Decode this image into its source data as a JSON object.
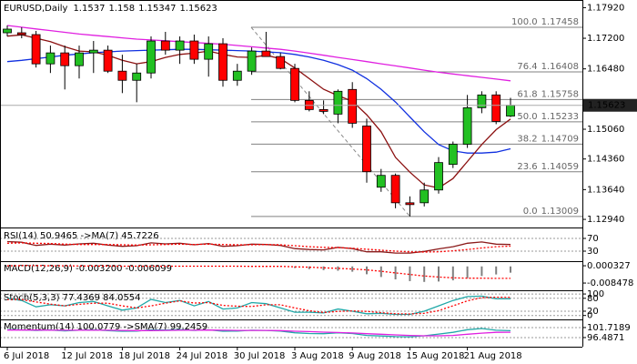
{
  "chart_data": [
    {
      "type": "candlestick",
      "title": "EURUSD,Daily",
      "categories": [
        "6 Jul 2018",
        null,
        null,
        null,
        "12 Jul 2018",
        null,
        null,
        null,
        "18 Jul 2018",
        null,
        null,
        null,
        "24 Jul 2018",
        null,
        null,
        null,
        "30 Jul 2018",
        null,
        null,
        null,
        "3 Aug 2018",
        null,
        null,
        null,
        "9 Aug 2018",
        null,
        null,
        null,
        "15 Aug 2018",
        null,
        null,
        null,
        "21 Aug 2018",
        null,
        null,
        null
      ],
      "open": [
        1.17329,
        1.17329,
        1.17286,
        1.16598,
        1.16856,
        1.16555,
        1.16856,
        1.1692,
        1.16426,
        1.16211,
        1.16383,
        1.17136,
        1.1692,
        1.17136,
        1.16706,
        1.17071,
        1.16211,
        1.16426,
        1.16899,
        1.1677,
        1.16491,
        1.15738,
        1.15523,
        1.15416,
        1.15996,
        1.15136,
        1.13696,
        1.13975,
        1.1333,
        1.1333,
        1.13631,
        1.14233,
        1.14706,
        1.15566,
        1.15867,
        1.1537
      ],
      "high": [
        1.17501,
        1.17458,
        1.17372,
        1.17028,
        1.17028,
        1.17028,
        1.17136,
        1.17028,
        1.16813,
        1.16598,
        1.17243,
        1.17351,
        1.17243,
        1.17286,
        1.17243,
        1.172,
        1.16598,
        1.16985,
        1.17351,
        1.16856,
        1.16598,
        1.15953,
        1.15738,
        1.15996,
        1.16168,
        1.15308,
        1.14126,
        1.14018,
        1.13481,
        1.13803,
        1.14405,
        1.14771,
        1.15867,
        1.15953,
        1.15953,
        1.158
      ],
      "low": [
        1.17243,
        1.172,
        1.16512,
        1.16383,
        1.15996,
        1.16254,
        1.16383,
        1.16383,
        1.1591,
        1.15695,
        1.16254,
        1.16813,
        1.16598,
        1.16598,
        1.16297,
        1.16061,
        1.16082,
        1.1634,
        1.1677,
        1.16469,
        1.15695,
        1.1548,
        1.15416,
        1.15201,
        1.15093,
        1.13803,
        1.13588,
        1.13201,
        1.13009,
        1.13244,
        1.13545,
        1.14147,
        1.1462,
        1.15437,
        1.15179,
        1.15347
      ],
      "close": [
        1.17415,
        1.17286,
        1.16598,
        1.16856,
        1.16555,
        1.16856,
        1.1692,
        1.16426,
        1.16211,
        1.16383,
        1.17136,
        1.1692,
        1.17136,
        1.16706,
        1.17071,
        1.16211,
        1.16426,
        1.16899,
        1.1677,
        1.16491,
        1.15738,
        1.15523,
        1.1548,
        1.15953,
        1.15201,
        1.14061,
        1.13975,
        1.1333,
        1.13287,
        1.13631,
        1.14276,
        1.14706,
        1.15566,
        1.15867,
        1.15244,
        1.15623
      ],
      "up_color": "#22c022",
      "down_color": "#ff0000",
      "series": [
        {
          "color": "#e020e0",
          "values": [
            1.175,
            1.1746,
            1.1742,
            1.1738,
            1.1734,
            1.173,
            1.1727,
            1.1724,
            1.1721,
            1.1718,
            1.1716,
            1.1714,
            1.1712,
            1.171,
            1.1708,
            1.1706,
            1.1703,
            1.17,
            1.1697,
            1.1694,
            1.169,
            1.1685,
            1.168,
            1.1675,
            1.167,
            1.1665,
            1.166,
            1.1655,
            1.165,
            1.1645,
            1.164,
            1.1636,
            1.1632,
            1.1628,
            1.1624,
            1.162
          ]
        },
        {
          "color": "#1030e0",
          "values": [
            1.1665,
            1.1668,
            1.1672,
            1.1676,
            1.168,
            1.1683,
            1.1686,
            1.1688,
            1.169,
            1.1691,
            1.1692,
            1.1693,
            1.1694,
            1.1694,
            1.1693,
            1.1692,
            1.1691,
            1.169,
            1.1688,
            1.1686,
            1.1682,
            1.1676,
            1.1668,
            1.1658,
            1.1645,
            1.1625,
            1.16,
            1.157,
            1.1535,
            1.15,
            1.147,
            1.1455,
            1.145,
            1.145,
            1.1452,
            1.146
          ]
        },
        {
          "color": "#8b1010",
          "values": [
            1.1725,
            1.1728,
            1.172,
            1.1712,
            1.17,
            1.169,
            1.1688,
            1.168,
            1.1668,
            1.166,
            1.1665,
            1.1675,
            1.1682,
            1.1685,
            1.169,
            1.1682,
            1.1676,
            1.1675,
            1.168,
            1.1672,
            1.165,
            1.1625,
            1.16,
            1.1585,
            1.1572,
            1.154,
            1.15,
            1.144,
            1.1405,
            1.1375,
            1.1368,
            1.139,
            1.143,
            1.147,
            1.1505,
            1.153
          ]
        }
      ],
      "fibonacci": [
        {
          "level": "100.0",
          "value": 1.17458
        },
        {
          "level": "76.4",
          "value": 1.16408
        },
        {
          "level": "61.8",
          "value": 1.15758
        },
        {
          "level": "50.0",
          "value": 1.15233
        },
        {
          "level": "38.2",
          "value": 1.14709
        },
        {
          "level": "23.6",
          "value": 1.14059
        },
        {
          "level": "0.0",
          "value": 1.13009
        }
      ],
      "ylim": [
        1.1277,
        1.181
      ],
      "yticks": [
        {
          "value": 1.1792,
          "label": "1.17920"
        },
        {
          "value": 1.172,
          "label": "1.17200"
        },
        {
          "value": 1.1648,
          "label": "1.16480"
        },
        {
          "value": 1.1506,
          "label": "1.15060"
        },
        {
          "value": 1.1436,
          "label": "1.14360"
        },
        {
          "value": 1.1364,
          "label": "1.13640"
        },
        {
          "value": 1.1294,
          "label": "1.12940"
        }
      ]
    },
    {
      "type": "line",
      "title": "RSI(14) 50.9465 ->MA(7) 45.7226",
      "ylim": [
        1.4,
        98.6
      ],
      "yticks": [
        70,
        30
      ],
      "series": [
        {
          "color": "#8b1a1a",
          "values": [
            60,
            58,
            48,
            52,
            49,
            53,
            55,
            49,
            45,
            47,
            56,
            53,
            55,
            50,
            54,
            45,
            47,
            52,
            51,
            48,
            38,
            35,
            34,
            42,
            38,
            28,
            28,
            24,
            24,
            29,
            37,
            44,
            55,
            59,
            52,
            50.9465
          ]
        },
        {
          "color": "#ff0000",
          "style": "dotted",
          "values": [
            55,
            56,
            55,
            54,
            52,
            51,
            51,
            51,
            50,
            49,
            50,
            51,
            52,
            51,
            52,
            51,
            50,
            50,
            51,
            50,
            47,
            44,
            42,
            41,
            39,
            36,
            33,
            30,
            28,
            27,
            28,
            31,
            35,
            40,
            44,
            45.7226
          ]
        }
      ]
    },
    {
      "type": "histogram-line",
      "title": "MACD(12,26,9) -0.003200 -0.006099",
      "ylim": [
        -0.0117,
        0.0022
      ],
      "yticks": [
        0.000327,
        -0.008478
      ],
      "bar_color": "#808080",
      "values": [
        0.0004,
        0.0005,
        0.0003,
        0.0002,
        0.0001,
        0.0001,
        0.0002,
        0.0001,
        -0.0001,
        -0.0001,
        0.0001,
        0.0002,
        0.0002,
        0.0001,
        0.0002,
        0.0,
        -0.0001,
        -0.0001,
        0.0,
        -0.0002,
        -0.0008,
        -0.0014,
        -0.0019,
        -0.0022,
        -0.0027,
        -0.004,
        -0.0054,
        -0.0066,
        -0.0075,
        -0.0079,
        -0.0077,
        -0.0071,
        -0.006,
        -0.0049,
        -0.0041,
        -0.0032
      ],
      "series": [
        {
          "color": "#ff0000",
          "style": "dotted",
          "values": [
            0.0003,
            0.0004,
            0.0004,
            0.0003,
            0.0003,
            0.0002,
            0.0002,
            0.0002,
            0.0001,
            0.0001,
            0.0001,
            0.0001,
            0.0001,
            0.0001,
            0.0001,
            0.0001,
            0.0001,
            0.0,
            0.0,
            0.0,
            -0.0002,
            -0.0004,
            -0.0007,
            -0.001,
            -0.0013,
            -0.0018,
            -0.0025,
            -0.0033,
            -0.0041,
            -0.0049,
            -0.0054,
            -0.0058,
            -0.006,
            -0.006,
            -0.0061,
            -0.006099
          ]
        }
      ]
    },
    {
      "type": "line",
      "title": "Stoch(5,3,3) 77.4369 84.0554",
      "ylim": [
        -14,
        113
      ],
      "yticks": [
        100,
        80,
        20,
        0
      ],
      "series": [
        {
          "color": "#20a8a8",
          "values": [
            80,
            70,
            40,
            50,
            45,
            60,
            65,
            45,
            25,
            35,
            75,
            60,
            70,
            45,
            65,
            30,
            35,
            60,
            55,
            35,
            15,
            15,
            12,
            30,
            20,
            8,
            10,
            5,
            5,
            20,
            45,
            70,
            88,
            90,
            78,
            77.4369
          ]
        },
        {
          "color": "#ff0000",
          "style": "dotted",
          "values": [
            75,
            74,
            63,
            53,
            45,
            52,
            57,
            57,
            45,
            35,
            45,
            57,
            68,
            58,
            60,
            47,
            43,
            42,
            50,
            50,
            35,
            22,
            14,
            19,
            21,
            19,
            13,
            8,
            7,
            10,
            23,
            45,
            68,
            83,
            85,
            84.0554
          ]
        }
      ]
    },
    {
      "type": "line",
      "title": "Momentum(14) 100.0779 ->SMA(7) 99.2459",
      "ylim": [
        91.7,
        105.5
      ],
      "yticks": [
        101.7189,
        96.4871
      ],
      "series": [
        {
          "color": "#20a8a8",
          "values": [
            100.6,
            100.5,
            100.2,
            100.4,
            100.0,
            100.3,
            100.5,
            100.1,
            99.8,
            99.9,
            100.5,
            100.4,
            100.6,
            100.2,
            100.5,
            99.8,
            99.9,
            100.3,
            100.2,
            99.9,
            99.0,
            98.6,
            98.5,
            99.0,
            98.6,
            97.6,
            97.3,
            97.0,
            96.9,
            97.4,
            98.3,
            99.2,
            100.6,
            101.2,
            100.3,
            100.0779
          ]
        },
        {
          "color": "#e020e0",
          "values": [
            100.4,
            100.4,
            100.4,
            100.3,
            100.3,
            100.3,
            100.3,
            100.3,
            100.2,
            100.1,
            100.1,
            100.2,
            100.3,
            100.3,
            100.4,
            100.3,
            100.2,
            100.2,
            100.2,
            100.1,
            99.8,
            99.6,
            99.3,
            99.1,
            98.9,
            98.5,
            98.2,
            97.9,
            97.6,
            97.4,
            97.4,
            97.6,
            98.2,
            98.8,
            99.2,
            99.2459
          ]
        }
      ]
    }
  ]
}
